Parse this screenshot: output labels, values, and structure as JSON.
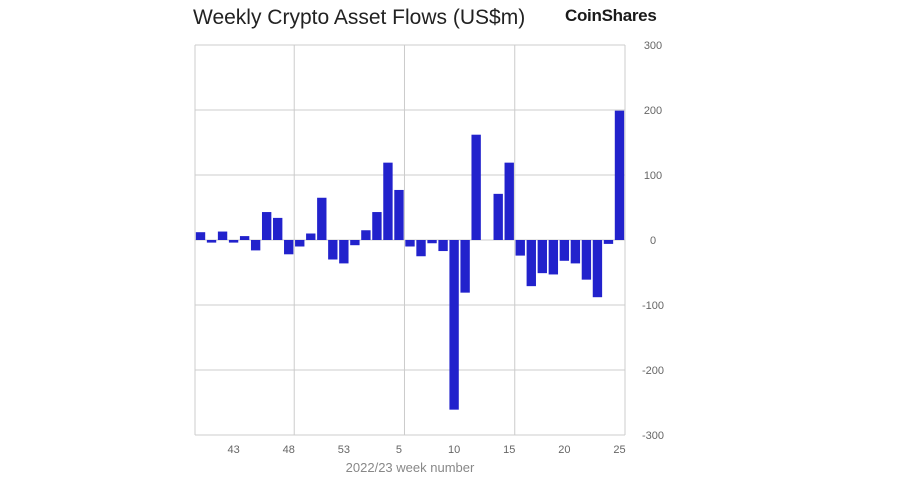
{
  "header": {
    "brand": "CoinShares"
  },
  "colors": {
    "bar": "#2222cc",
    "grid": "#cccccc",
    "axis": "#cccccc",
    "tick_text": "#666666",
    "title_text": "#222222"
  },
  "chart_data": {
    "type": "bar",
    "title": "Weekly Crypto Asset Flows (US$m)",
    "xlabel": "2022/23 week number",
    "ylabel": "",
    "ylim": [
      -300,
      300
    ],
    "yticks": [
      300,
      200,
      100,
      0,
      -100,
      -200,
      -300
    ],
    "x_tick_labels": [
      {
        "label": "43",
        "index": 3
      },
      {
        "label": "48",
        "index": 8
      },
      {
        "label": "53",
        "index": 13
      },
      {
        "label": "5",
        "index": 18
      },
      {
        "label": "10",
        "index": 23
      },
      {
        "label": "15",
        "index": 28
      },
      {
        "label": "20",
        "index": 33
      },
      {
        "label": "25",
        "index": 38
      }
    ],
    "vertical_grid_at_index": [
      9,
      19,
      29
    ],
    "categories": [
      "40",
      "41",
      "42",
      "43",
      "44",
      "45",
      "46",
      "47",
      "48",
      "49",
      "50",
      "51",
      "52",
      "53",
      "1",
      "2",
      "3",
      "4",
      "5",
      "6",
      "7",
      "8",
      "9",
      "10",
      "11",
      "12",
      "13",
      "14",
      "15",
      "16",
      "17",
      "18",
      "19",
      "20",
      "21",
      "22",
      "23",
      "24",
      "25"
    ],
    "values": [
      12,
      -4,
      13,
      -4,
      6,
      -16,
      43,
      34,
      -22,
      -10,
      10,
      65,
      -30,
      -36,
      -8,
      15,
      43,
      119,
      77,
      -10,
      -25,
      -5,
      -17,
      -261,
      -81,
      162,
      0,
      71,
      119,
      -24,
      -71,
      -51,
      -53,
      -32,
      -36,
      -61,
      -88,
      -6,
      199
    ]
  }
}
